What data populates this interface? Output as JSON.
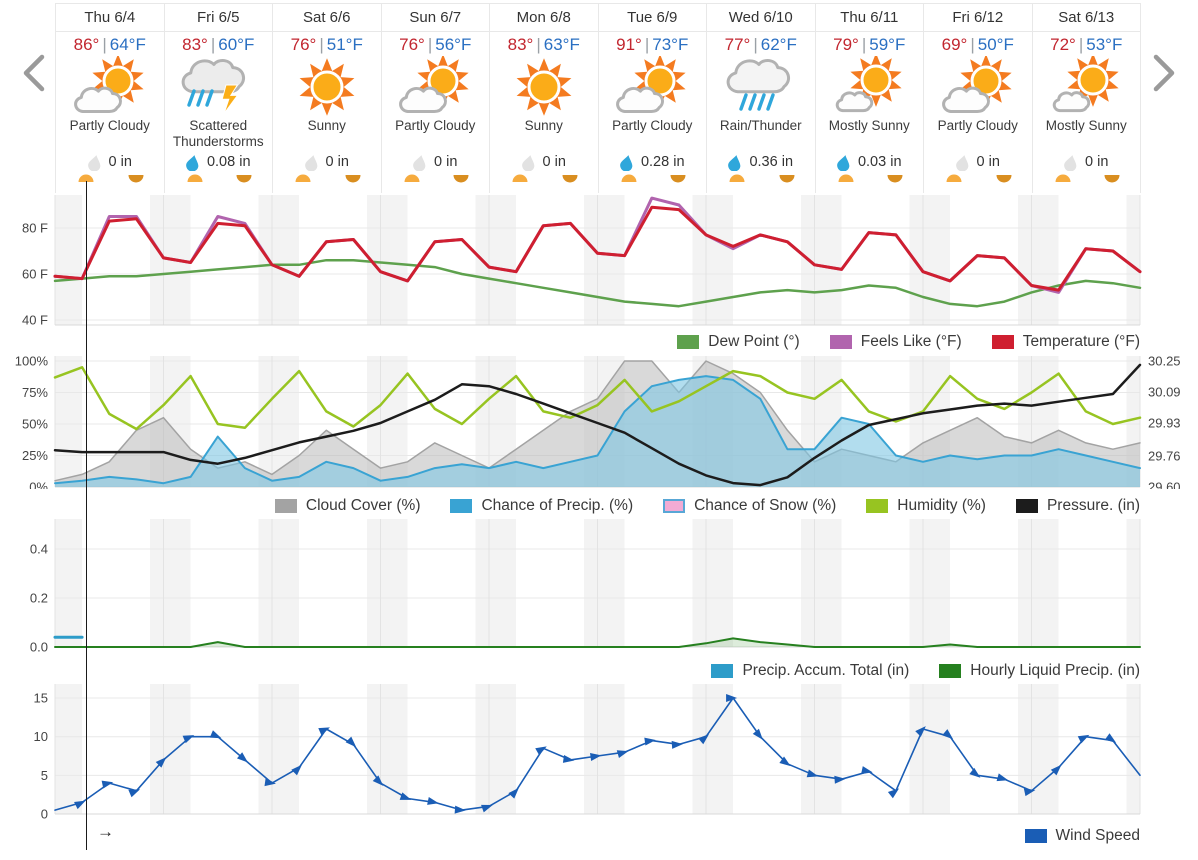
{
  "nav": {
    "prev_label": "previous days",
    "next_label": "next days"
  },
  "cursor": {
    "arrow": "→"
  },
  "forecast": {
    "temp_divider": "|",
    "days": [
      {
        "date": "Thu 6/4",
        "high": "86°",
        "low": "64°F",
        "condition": "Partly Cloudy",
        "icon": "partly-cloudy",
        "precip": "0 in",
        "wet": false
      },
      {
        "date": "Fri 6/5",
        "high": "83°",
        "low": "60°F",
        "condition": "Scattered Thunderstorms",
        "icon": "scattered-thunderstorms",
        "precip": "0.08 in",
        "wet": true
      },
      {
        "date": "Sat 6/6",
        "high": "76°",
        "low": "51°F",
        "condition": "Sunny",
        "icon": "sunny",
        "precip": "0 in",
        "wet": false
      },
      {
        "date": "Sun 6/7",
        "high": "76°",
        "low": "56°F",
        "condition": "Partly Cloudy",
        "icon": "partly-cloudy",
        "precip": "0 in",
        "wet": false
      },
      {
        "date": "Mon 6/8",
        "high": "83°",
        "low": "63°F",
        "condition": "Sunny",
        "icon": "sunny",
        "precip": "0 in",
        "wet": false
      },
      {
        "date": "Tue 6/9",
        "high": "91°",
        "low": "73°F",
        "condition": "Partly Cloudy",
        "icon": "partly-cloudy",
        "precip": "0.28 in",
        "wet": true
      },
      {
        "date": "Wed 6/10",
        "high": "77°",
        "low": "62°F",
        "condition": "Rain/Thunder",
        "icon": "rain-thunder",
        "precip": "0.36 in",
        "wet": true
      },
      {
        "date": "Thu 6/11",
        "high": "79°",
        "low": "59°F",
        "condition": "Mostly Sunny",
        "icon": "mostly-sunny",
        "precip": "0.03 in",
        "wet": true
      },
      {
        "date": "Fri 6/12",
        "high": "69°",
        "low": "50°F",
        "condition": "Partly Cloudy",
        "icon": "partly-cloudy",
        "precip": "0 in",
        "wet": false
      },
      {
        "date": "Sat 6/13",
        "high": "72°",
        "low": "53°F",
        "condition": "Mostly Sunny",
        "icon": "mostly-sunny",
        "precip": "0 in",
        "wet": false
      }
    ]
  },
  "colors": {
    "high_temp": "#c2262f",
    "low_temp": "#2a6fc2",
    "sun": "#f47b20",
    "sun_core": "#fbac18",
    "rain": "#2fa7db",
    "bolt": "#fbae17",
    "sunrise": "#f6ab3e",
    "sunset": "#d98e20",
    "night_band": "#f3f3f3",
    "gridline": "#e8e8e8"
  },
  "chart_data": [
    {
      "type": "line",
      "title": "Temperature / Feels Like / Dew Point",
      "x": {
        "unit": "hours",
        "start": 0,
        "step": 6,
        "end": 240,
        "start_day": "Thu 6/4",
        "days": 10
      },
      "yticks": [
        {
          "label": "80 F",
          "value": 80
        },
        {
          "label": "60 F",
          "value": 60
        },
        {
          "label": "40 F",
          "value": 40
        }
      ],
      "ylim": [
        38,
        95
      ],
      "series": [
        {
          "name": "Dew Point (°)",
          "color": "#5ea14d",
          "width": 2.5,
          "values": [
            57,
            58,
            59,
            59,
            60,
            61,
            62,
            63,
            64,
            64,
            66,
            66,
            65,
            64,
            63,
            60,
            58,
            56,
            54,
            52,
            50,
            48,
            47,
            46,
            48,
            50,
            52,
            53,
            52,
            53,
            55,
            54,
            50,
            47,
            46,
            48,
            52,
            55,
            57,
            56,
            54
          ]
        },
        {
          "name": "Feels Like (°F)",
          "color": "#b164ae",
          "width": 3,
          "values": [
            59,
            58,
            85,
            85,
            67,
            65,
            85,
            82,
            64,
            59,
            74,
            75,
            61,
            57,
            74,
            75,
            63,
            61,
            81,
            82,
            69,
            68,
            93,
            90,
            77,
            71,
            77,
            74,
            64,
            62,
            78,
            77,
            61,
            57,
            68,
            67,
            55,
            52,
            71,
            70,
            61
          ]
        },
        {
          "name": "Temperature (°F)",
          "color": "#cf1f30",
          "width": 3,
          "values": [
            59,
            58,
            83,
            84,
            67,
            65,
            82,
            81,
            64,
            59,
            74,
            75,
            61,
            57,
            74,
            75,
            63,
            61,
            81,
            82,
            69,
            68,
            89,
            88,
            77,
            72,
            77,
            74,
            64,
            62,
            78,
            77,
            61,
            57,
            68,
            67,
            55,
            53,
            71,
            70,
            61
          ]
        }
      ]
    },
    {
      "type": "line",
      "title": "Cloud / Precip chance / Humidity / Pressure",
      "x": {
        "unit": "hours",
        "start": 0,
        "step": 6,
        "end": 240,
        "start_day": "Thu 6/4",
        "days": 10
      },
      "yticks": [
        {
          "label": "100%",
          "value": 100
        },
        {
          "label": "75%",
          "value": 75
        },
        {
          "label": "50%",
          "value": 50
        },
        {
          "label": "25%",
          "value": 25
        },
        {
          "label": "0%",
          "value": 0
        }
      ],
      "right_yticks": [
        {
          "label": "30.25",
          "value": 30.25
        },
        {
          "label": "30.09",
          "value": 30.09
        },
        {
          "label": "29.93",
          "value": 29.93
        },
        {
          "label": "29.76",
          "value": 29.76
        },
        {
          "label": "29.60",
          "value": 29.6
        }
      ],
      "ylim": [
        0,
        100
      ],
      "right_ylim": [
        29.6,
        30.25
      ],
      "series": [
        {
          "name": "Cloud Cover (%)",
          "color": "#a3a3a3",
          "width": 1.5,
          "fill": "rgba(185,185,185,0.55)",
          "values": [
            5,
            10,
            20,
            45,
            55,
            30,
            15,
            20,
            10,
            25,
            45,
            30,
            15,
            20,
            35,
            25,
            15,
            30,
            45,
            60,
            70,
            100,
            100,
            75,
            100,
            90,
            75,
            45,
            20,
            30,
            25,
            20,
            35,
            45,
            55,
            40,
            35,
            45,
            35,
            30,
            35
          ]
        },
        {
          "name": "Chance of Snow (%)",
          "color": "#eba6cd",
          "width": 2,
          "hidden": true,
          "values": [
            0,
            0,
            0,
            0,
            0,
            0,
            0,
            0,
            0,
            0,
            0,
            0,
            0,
            0,
            0,
            0,
            0,
            0,
            0,
            0,
            0,
            0,
            0,
            0,
            0,
            0,
            0,
            0,
            0,
            0,
            0,
            0,
            0,
            0,
            0,
            0,
            0,
            0,
            0,
            0,
            0
          ]
        },
        {
          "name": "Chance of Precip. (%)",
          "color": "#39a3d3",
          "width": 2,
          "fill": "rgba(126,198,227,0.6)",
          "values": [
            3,
            5,
            8,
            6,
            3,
            8,
            40,
            15,
            5,
            8,
            20,
            15,
            5,
            8,
            15,
            18,
            15,
            20,
            15,
            20,
            25,
            60,
            80,
            85,
            88,
            85,
            70,
            30,
            30,
            55,
            50,
            25,
            20,
            25,
            22,
            25,
            25,
            30,
            25,
            20,
            15
          ]
        },
        {
          "name": "Humidity (%)",
          "color": "#97c421",
          "width": 2.5,
          "values": [
            87,
            95,
            58,
            46,
            65,
            88,
            50,
            47,
            70,
            92,
            60,
            48,
            65,
            90,
            62,
            50,
            70,
            88,
            60,
            55,
            65,
            85,
            60,
            68,
            80,
            92,
            88,
            75,
            70,
            85,
            60,
            52,
            60,
            88,
            70,
            62,
            75,
            90,
            60,
            50,
            55
          ]
        },
        {
          "name": "Pressure. (in)",
          "color": "#1c1c1c",
          "width": 2.5,
          "axis": "right",
          "values": [
            29.79,
            29.78,
            29.78,
            29.78,
            29.78,
            29.74,
            29.72,
            29.75,
            29.79,
            29.83,
            29.86,
            29.89,
            29.93,
            29.99,
            30.05,
            30.13,
            30.12,
            30.08,
            30.03,
            29.98,
            29.93,
            29.88,
            29.8,
            29.72,
            29.66,
            29.62,
            29.61,
            29.65,
            29.75,
            29.84,
            29.92,
            29.95,
            29.98,
            30.0,
            30.02,
            30.03,
            30.02,
            30.04,
            30.06,
            30.08,
            30.23
          ]
        }
      ],
      "legend_order": [
        "Cloud Cover (%)",
        "Chance of Precip. (%)",
        "Chance of Snow (%)",
        "Humidity (%)",
        "Pressure. (in)"
      ]
    },
    {
      "type": "line",
      "title": "Precipitation",
      "x": {
        "unit": "hours",
        "start": 0,
        "step": 6,
        "end": 240,
        "start_day": "Thu 6/4",
        "days": 10
      },
      "yticks": [
        {
          "label": "0.4",
          "value": 0.4
        },
        {
          "label": "0.2",
          "value": 0.2
        },
        {
          "label": "0.0",
          "value": 0.0
        }
      ],
      "ylim": [
        0,
        0.52
      ],
      "series": [
        {
          "name": "Precip. Accum. Total (in)",
          "color": "#2d9cc9",
          "width": 3,
          "values": [
            0.04,
            0.04,
            null,
            null,
            null,
            null,
            null,
            null,
            null,
            null,
            null,
            null,
            null,
            null,
            null,
            null,
            null,
            null,
            null,
            null,
            null,
            null,
            null,
            null,
            null,
            null,
            null,
            null,
            null,
            null,
            null,
            null,
            null,
            null,
            null,
            null,
            null,
            null,
            null,
            null,
            null
          ]
        },
        {
          "name": "Hourly Liquid Precip. (in)",
          "color": "#26801f",
          "width": 2,
          "fill": "rgba(120,180,110,0.25)",
          "values": [
            0,
            0,
            0,
            0,
            0,
            0,
            0.02,
            0,
            0,
            0,
            0,
            0,
            0,
            0,
            0,
            0,
            0,
            0,
            0,
            0,
            0,
            0,
            0,
            0,
            0.015,
            0.035,
            0.02,
            0.01,
            0,
            0,
            0,
            0,
            0,
            0.01,
            0,
            0,
            0,
            0,
            0,
            0,
            0
          ]
        }
      ]
    },
    {
      "type": "line",
      "title": "Wind",
      "x": {
        "unit": "hours",
        "start": 0,
        "step": 6,
        "end": 240,
        "start_day": "Thu 6/4",
        "days": 10
      },
      "yticks": [
        {
          "label": "15",
          "value": 15
        },
        {
          "label": "10",
          "value": 10
        },
        {
          "label": "5",
          "value": 5
        },
        {
          "label": "0",
          "value": 0
        }
      ],
      "ylim": [
        -2.5,
        15.5
      ],
      "series": [
        {
          "name": "Wind Speed",
          "color": "#1a5db5",
          "width": 1.6,
          "markers": true,
          "values": [
            0.5,
            1.5,
            4,
            3,
            7,
            10,
            10,
            7,
            4,
            6,
            11,
            9,
            4,
            2,
            1.5,
            0.5,
            1,
            3,
            8.5,
            7,
            7.5,
            8,
            9.5,
            9,
            10,
            15,
            10,
            6.5,
            5,
            4.5,
            5.5,
            3,
            11,
            10,
            5,
            4.5,
            3,
            6,
            10,
            9.5,
            5
          ]
        }
      ]
    }
  ]
}
